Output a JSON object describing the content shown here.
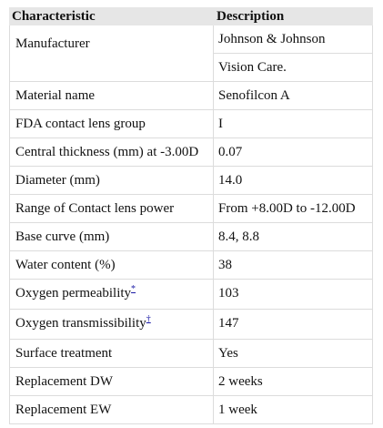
{
  "headers": [
    "Characteristic",
    "Description"
  ],
  "rows": [
    {
      "c1": "Manufacturer",
      "c2": [
        "Johnson & Johnson",
        "Vision Care."
      ]
    },
    {
      "c1": "Material name",
      "c2": "Senofilcon A"
    },
    {
      "c1": "FDA contact lens group",
      "c2": "I"
    },
    {
      "c1": "Central thickness (mm) at -3.00D",
      "c2": "0.07"
    },
    {
      "c1": "Diameter (mm)",
      "c2": "14.0"
    },
    {
      "c1": "Range of Contact lens power",
      "c2": "From +8.00D to -12.00D"
    },
    {
      "c1": "Base curve (mm)",
      "c2": "8.4, 8.8"
    },
    {
      "c1": "Water content (%)",
      "c2": "38"
    },
    {
      "c1": "Oxygen permeability",
      "fn": "*",
      "c2": "103"
    },
    {
      "c1": "Oxygen transmissibility",
      "fn": "†",
      "c2": "147"
    },
    {
      "c1": "Surface treatment",
      "c2": "Yes"
    },
    {
      "c1": "Replacement DW",
      "c2": "2 weeks"
    },
    {
      "c1": "Replacement EW",
      "c2": "1 week"
    }
  ]
}
